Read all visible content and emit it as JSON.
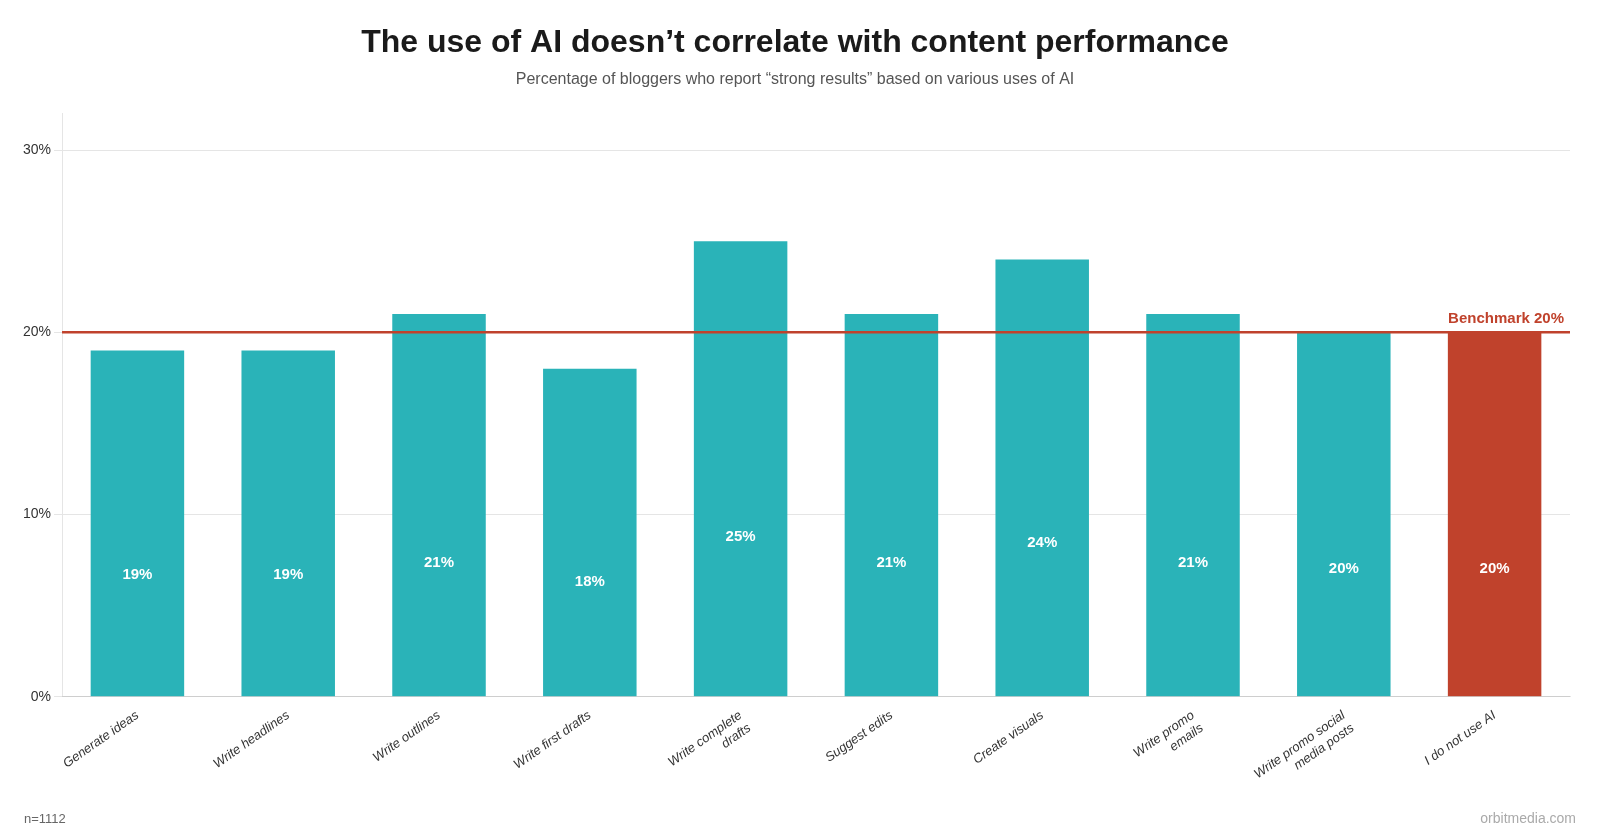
{
  "chart_data": {
    "type": "bar",
    "title": "The use of AI doesn’t correlate with content performance",
    "subtitle": "Percentage of bloggers who report “strong results” based on various uses of AI",
    "categories": [
      "Generate ideas",
      "Write headlines",
      "Write outlines",
      "Write first drafts",
      "Write complete\ndrafts",
      "Suggest edits",
      "Create visuals",
      "Write promo\nemails",
      "Write promo social\nmedia posts",
      "I do not use AI"
    ],
    "values": [
      19,
      19,
      21,
      18,
      25,
      21,
      24,
      21,
      20,
      20
    ],
    "value_labels": [
      "19%",
      "19%",
      "21%",
      "18%",
      "25%",
      "21%",
      "24%",
      "21%",
      "20%",
      "20%"
    ],
    "data_labels": true,
    "colors": [
      "#2ab3b8",
      "#2ab3b8",
      "#2ab3b8",
      "#2ab3b8",
      "#2ab3b8",
      "#2ab3b8",
      "#2ab3b8",
      "#2ab3b8",
      "#2ab3b8",
      "#c0422c"
    ],
    "annotations": [
      {
        "type": "hline",
        "y": 20,
        "label": "Benchmark 20%",
        "color": "#c0422c"
      }
    ],
    "ylim": [
      0,
      32
    ],
    "yticks": [
      {
        "value": 0,
        "label": "0%"
      },
      {
        "value": 10,
        "label": "10%"
      },
      {
        "value": 20,
        "label": "20%"
      },
      {
        "value": 30,
        "label": "30%"
      }
    ],
    "grid": true,
    "footnote": "n=1112",
    "watermark": "orbitmedia.com"
  }
}
